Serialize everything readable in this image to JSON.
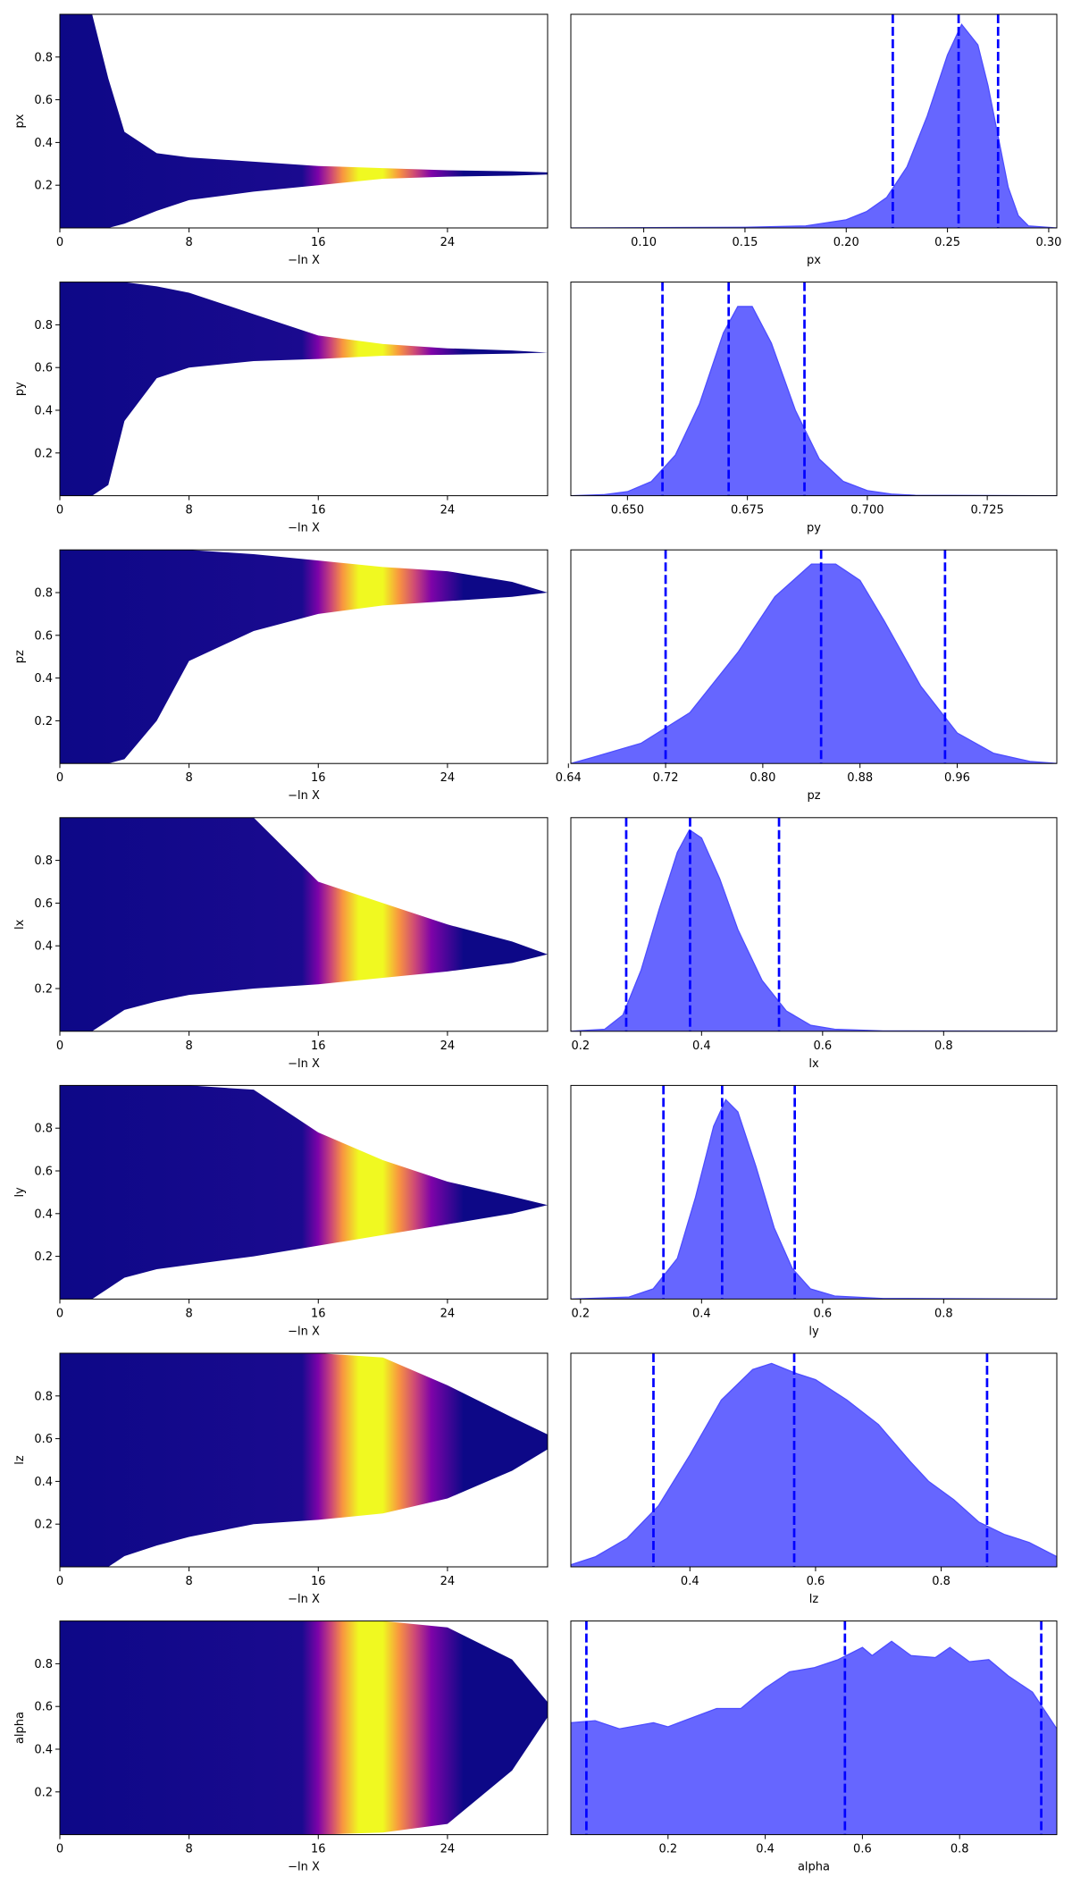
{
  "chart_data": [
    {
      "type": "band",
      "xlabel": "−ln X",
      "ylabel": "px",
      "xlim": [
        0,
        30.2
      ],
      "ylim": [
        0,
        1
      ],
      "xticks": [
        0,
        8,
        16,
        24
      ],
      "yticks": [
        0.2,
        0.4,
        0.6,
        0.8
      ],
      "x": [
        0,
        2,
        3,
        4,
        6,
        8,
        12,
        16,
        20,
        24,
        28,
        30.2
      ],
      "y_upper": [
        1,
        1,
        0.7,
        0.45,
        0.35,
        0.33,
        0.31,
        0.29,
        0.28,
        0.27,
        0.265,
        0.26
      ],
      "y_lower": [
        0,
        0,
        0,
        0.02,
        0.08,
        0.13,
        0.17,
        0.2,
        0.23,
        0.24,
        0.245,
        0.25
      ],
      "color_stops": [
        {
          "x": 0,
          "color": "#0d0887"
        },
        {
          "x": 15,
          "color": "#1a0a8f"
        },
        {
          "x": 16,
          "color": "#7e03a8"
        },
        {
          "x": 16.8,
          "color": "#cc4778"
        },
        {
          "x": 17.5,
          "color": "#f89540"
        },
        {
          "x": 18.5,
          "color": "#f0f921"
        },
        {
          "x": 20,
          "color": "#f0f921"
        },
        {
          "x": 21,
          "color": "#f89540"
        },
        {
          "x": 22,
          "color": "#cc4778"
        },
        {
          "x": 23,
          "color": "#7e03a8"
        },
        {
          "x": 25,
          "color": "#0d0887"
        },
        {
          "x": 30.2,
          "color": "#0d0887"
        }
      ]
    },
    {
      "type": "density",
      "xlabel": "px",
      "xlim": [
        0.064,
        0.304
      ],
      "ylim": [
        0,
        1.05
      ],
      "xticks": [
        {
          "value": 0.1,
          "label": "0.10"
        },
        {
          "value": 0.15,
          "label": "0.15"
        },
        {
          "value": 0.2,
          "label": "0.20"
        },
        {
          "value": 0.25,
          "label": "0.25"
        },
        {
          "value": 0.3,
          "label": "0.30"
        }
      ],
      "x": [
        0.064,
        0.15,
        0.18,
        0.2,
        0.21,
        0.22,
        0.23,
        0.24,
        0.25,
        0.257,
        0.265,
        0.27,
        0.275,
        0.28,
        0.285,
        0.29,
        0.304
      ],
      "values": [
        0,
        0.003,
        0.01,
        0.04,
        0.08,
        0.15,
        0.3,
        0.55,
        0.85,
        1.0,
        0.9,
        0.7,
        0.45,
        0.2,
        0.06,
        0.01,
        0
      ],
      "quantiles": [
        0.223,
        0.2555,
        0.275
      ],
      "color": "#6666ff",
      "quantile_color": "#0000ff"
    },
    {
      "type": "band",
      "xlabel": "−ln X",
      "ylabel": "py",
      "xlim": [
        0,
        30.2
      ],
      "ylim": [
        0,
        1
      ],
      "xticks": [
        0,
        8,
        16,
        24
      ],
      "yticks": [
        0.2,
        0.4,
        0.6,
        0.8
      ],
      "x": [
        0,
        2,
        3,
        4,
        6,
        8,
        12,
        16,
        20,
        24,
        28,
        30.2
      ],
      "y_upper": [
        1,
        1,
        1,
        1,
        0.98,
        0.95,
        0.85,
        0.75,
        0.71,
        0.69,
        0.68,
        0.67
      ],
      "y_lower": [
        0,
        0,
        0.05,
        0.35,
        0.55,
        0.6,
        0.63,
        0.64,
        0.655,
        0.66,
        0.665,
        0.67
      ],
      "color_stops": [
        {
          "x": 0,
          "color": "#0d0887"
        },
        {
          "x": 15,
          "color": "#1a0a8f"
        },
        {
          "x": 16,
          "color": "#7e03a8"
        },
        {
          "x": 16.8,
          "color": "#cc4778"
        },
        {
          "x": 17.5,
          "color": "#f89540"
        },
        {
          "x": 18.5,
          "color": "#f0f921"
        },
        {
          "x": 20,
          "color": "#f0f921"
        },
        {
          "x": 21,
          "color": "#f89540"
        },
        {
          "x": 22,
          "color": "#cc4778"
        },
        {
          "x": 23,
          "color": "#7e03a8"
        },
        {
          "x": 25,
          "color": "#0d0887"
        },
        {
          "x": 30.2,
          "color": "#0d0887"
        }
      ]
    },
    {
      "type": "density",
      "xlabel": "py",
      "xlim": [
        0.6382,
        0.7395
      ],
      "ylim": [
        0,
        1.05
      ],
      "xticks": [
        {
          "value": 0.65,
          "label": "0.650"
        },
        {
          "value": 0.675,
          "label": "0.675"
        },
        {
          "value": 0.7,
          "label": "0.700"
        },
        {
          "value": 0.725,
          "label": "0.725"
        }
      ],
      "x": [
        0.6382,
        0.645,
        0.65,
        0.655,
        0.66,
        0.665,
        0.67,
        0.673,
        0.676,
        0.68,
        0.685,
        0.69,
        0.695,
        0.7,
        0.705,
        0.71,
        0.7395
      ],
      "values": [
        0,
        0.005,
        0.02,
        0.07,
        0.2,
        0.45,
        0.8,
        0.93,
        0.93,
        0.75,
        0.42,
        0.18,
        0.07,
        0.025,
        0.008,
        0.002,
        0
      ],
      "quantiles": [
        0.6573,
        0.6711,
        0.6869
      ],
      "color": "#6666ff",
      "quantile_color": "#0000ff"
    },
    {
      "type": "band",
      "xlabel": "−ln X",
      "ylabel": "pz",
      "xlim": [
        0,
        30.2
      ],
      "ylim": [
        0,
        1
      ],
      "xticks": [
        0,
        8,
        16,
        24
      ],
      "yticks": [
        0.2,
        0.4,
        0.6,
        0.8
      ],
      "x": [
        0,
        2,
        3,
        4,
        6,
        8,
        12,
        16,
        20,
        24,
        28,
        30.2
      ],
      "y_upper": [
        1,
        1,
        1,
        1,
        1,
        1,
        0.98,
        0.95,
        0.92,
        0.9,
        0.85,
        0.8
      ],
      "y_lower": [
        0,
        0,
        0,
        0.02,
        0.2,
        0.48,
        0.62,
        0.7,
        0.74,
        0.76,
        0.78,
        0.8
      ],
      "color_stops": [
        {
          "x": 0,
          "color": "#0d0887"
        },
        {
          "x": 15,
          "color": "#1a0a8f"
        },
        {
          "x": 16,
          "color": "#7e03a8"
        },
        {
          "x": 16.8,
          "color": "#cc4778"
        },
        {
          "x": 17.5,
          "color": "#f89540"
        },
        {
          "x": 18.5,
          "color": "#f0f921"
        },
        {
          "x": 20,
          "color": "#f0f921"
        },
        {
          "x": 21,
          "color": "#f89540"
        },
        {
          "x": 22,
          "color": "#cc4778"
        },
        {
          "x": 23,
          "color": "#7e03a8"
        },
        {
          "x": 25,
          "color": "#0d0887"
        },
        {
          "x": 30.2,
          "color": "#0d0887"
        }
      ]
    },
    {
      "type": "density",
      "xlabel": "pz",
      "xlim": [
        0.642,
        1.042
      ],
      "ylim": [
        0,
        1.05
      ],
      "xticks": [
        0.64,
        0.72,
        {
          "value": 0.8,
          "label": "0.80"
        },
        0.88,
        0.96
      ],
      "x": [
        0.642,
        0.66,
        0.7,
        0.74,
        0.78,
        0.81,
        0.84,
        0.86,
        0.88,
        0.9,
        0.93,
        0.96,
        0.99,
        1.02,
        1.042
      ],
      "values": [
        0,
        0.03,
        0.1,
        0.25,
        0.55,
        0.82,
        0.98,
        0.98,
        0.9,
        0.7,
        0.38,
        0.15,
        0.05,
        0.01,
        0
      ],
      "quantiles": [
        0.72,
        0.848,
        0.95
      ],
      "color": "#6666ff",
      "quantile_color": "#0000ff"
    },
    {
      "type": "band",
      "xlabel": "−ln X",
      "ylabel": "lx",
      "xlim": [
        0,
        30.2
      ],
      "ylim": [
        0,
        1
      ],
      "xticks": [
        0,
        8,
        16,
        24
      ],
      "yticks": [
        0.2,
        0.4,
        0.6,
        0.8
      ],
      "x": [
        0,
        2,
        3,
        4,
        6,
        8,
        12,
        16,
        20,
        24,
        28,
        30.2
      ],
      "y_upper": [
        1,
        1,
        1,
        1,
        1,
        1,
        1,
        0.7,
        0.6,
        0.5,
        0.42,
        0.36
      ],
      "y_lower": [
        0,
        0,
        0.05,
        0.1,
        0.14,
        0.17,
        0.2,
        0.22,
        0.25,
        0.28,
        0.32,
        0.36
      ],
      "color_stops": [
        {
          "x": 0,
          "color": "#0d0887"
        },
        {
          "x": 15,
          "color": "#1a0a8f"
        },
        {
          "x": 16,
          "color": "#7e03a8"
        },
        {
          "x": 16.8,
          "color": "#cc4778"
        },
        {
          "x": 17.5,
          "color": "#f89540"
        },
        {
          "x": 18.5,
          "color": "#f0f921"
        },
        {
          "x": 20,
          "color": "#f0f921"
        },
        {
          "x": 21,
          "color": "#f89540"
        },
        {
          "x": 22,
          "color": "#cc4778"
        },
        {
          "x": 23,
          "color": "#7e03a8"
        },
        {
          "x": 25,
          "color": "#0d0887"
        },
        {
          "x": 30.2,
          "color": "#0d0887"
        }
      ]
    },
    {
      "type": "density",
      "xlabel": "lx",
      "xlim": [
        0.184,
        0.987
      ],
      "ylim": [
        0,
        1.05
      ],
      "xticks": [
        0.2,
        0.4,
        0.6,
        0.8
      ],
      "x": [
        0.184,
        0.24,
        0.27,
        0.3,
        0.33,
        0.36,
        0.38,
        0.4,
        0.43,
        0.46,
        0.5,
        0.54,
        0.58,
        0.62,
        0.7,
        0.987
      ],
      "values": [
        0,
        0.01,
        0.08,
        0.3,
        0.6,
        0.88,
        0.99,
        0.95,
        0.75,
        0.5,
        0.25,
        0.1,
        0.03,
        0.01,
        0.002,
        0
      ],
      "quantiles": [
        0.2755,
        0.381,
        0.528
      ],
      "color": "#6666ff",
      "quantile_color": "#0000ff"
    },
    {
      "type": "band",
      "xlabel": "−ln X",
      "ylabel": "ly",
      "xlim": [
        0,
        30.2
      ],
      "ylim": [
        0,
        1
      ],
      "xticks": [
        0,
        8,
        16,
        24
      ],
      "yticks": [
        0.2,
        0.4,
        0.6,
        0.8
      ],
      "x": [
        0,
        2,
        3,
        4,
        6,
        8,
        12,
        16,
        20,
        24,
        28,
        30.2
      ],
      "y_upper": [
        1,
        1,
        1,
        1,
        1,
        1,
        0.98,
        0.78,
        0.65,
        0.55,
        0.48,
        0.44
      ],
      "y_lower": [
        0,
        0,
        0.05,
        0.1,
        0.14,
        0.16,
        0.2,
        0.25,
        0.3,
        0.35,
        0.4,
        0.44
      ],
      "color_stops": [
        {
          "x": 0,
          "color": "#0d0887"
        },
        {
          "x": 15,
          "color": "#1a0a8f"
        },
        {
          "x": 16,
          "color": "#7e03a8"
        },
        {
          "x": 16.8,
          "color": "#cc4778"
        },
        {
          "x": 17.5,
          "color": "#f89540"
        },
        {
          "x": 18.5,
          "color": "#f0f921"
        },
        {
          "x": 20,
          "color": "#f0f921"
        },
        {
          "x": 21,
          "color": "#f89540"
        },
        {
          "x": 22,
          "color": "#cc4778"
        },
        {
          "x": 23,
          "color": "#7e03a8"
        },
        {
          "x": 25,
          "color": "#0d0887"
        },
        {
          "x": 30.2,
          "color": "#0d0887"
        }
      ]
    },
    {
      "type": "density",
      "xlabel": "ly",
      "xlim": [
        0.184,
        0.987
      ],
      "ylim": [
        0,
        1.05
      ],
      "xticks": [
        0.2,
        0.4,
        0.6,
        0.8
      ],
      "x": [
        0.184,
        0.28,
        0.32,
        0.36,
        0.39,
        0.42,
        0.44,
        0.46,
        0.49,
        0.52,
        0.55,
        0.58,
        0.62,
        0.7,
        0.987
      ],
      "values": [
        0,
        0.01,
        0.05,
        0.2,
        0.5,
        0.85,
        0.98,
        0.92,
        0.65,
        0.35,
        0.15,
        0.05,
        0.015,
        0.003,
        0
      ],
      "quantiles": [
        0.337,
        0.434,
        0.554
      ],
      "color": "#6666ff",
      "quantile_color": "#0000ff"
    },
    {
      "type": "band",
      "xlabel": "−ln X",
      "ylabel": "lz",
      "xlim": [
        0,
        30.2
      ],
      "ylim": [
        0,
        1
      ],
      "xticks": [
        0,
        8,
        16,
        24
      ],
      "yticks": [
        0.2,
        0.4,
        0.6,
        0.8
      ],
      "x": [
        0,
        2,
        3,
        4,
        6,
        8,
        12,
        16,
        20,
        24,
        28,
        30.2
      ],
      "y_upper": [
        1,
        1,
        1,
        1,
        1,
        1,
        1,
        1,
        0.98,
        0.85,
        0.7,
        0.62
      ],
      "y_lower": [
        0,
        0,
        0,
        0.05,
        0.1,
        0.14,
        0.2,
        0.22,
        0.25,
        0.32,
        0.45,
        0.55
      ],
      "color_stops": [
        {
          "x": 0,
          "color": "#0d0887"
        },
        {
          "x": 15,
          "color": "#1a0a8f"
        },
        {
          "x": 16,
          "color": "#7e03a8"
        },
        {
          "x": 16.8,
          "color": "#cc4778"
        },
        {
          "x": 17.5,
          "color": "#f89540"
        },
        {
          "x": 18.5,
          "color": "#f0f921"
        },
        {
          "x": 20,
          "color": "#f0f921"
        },
        {
          "x": 21,
          "color": "#f89540"
        },
        {
          "x": 22,
          "color": "#cc4778"
        },
        {
          "x": 23,
          "color": "#7e03a8"
        },
        {
          "x": 25,
          "color": "#0d0887"
        },
        {
          "x": 30.2,
          "color": "#0d0887"
        }
      ]
    },
    {
      "type": "density",
      "xlabel": "lz",
      "xlim": [
        0.2105,
        0.984
      ],
      "ylim": [
        0,
        1.05
      ],
      "xticks": [
        0.4,
        0.6,
        0.8
      ],
      "x": [
        0.2105,
        0.25,
        0.3,
        0.35,
        0.4,
        0.45,
        0.5,
        0.53,
        0.57,
        0.6,
        0.65,
        0.7,
        0.75,
        0.78,
        0.82,
        0.86,
        0.9,
        0.94,
        0.984
      ],
      "values": [
        0.01,
        0.05,
        0.14,
        0.3,
        0.55,
        0.82,
        0.97,
        1.0,
        0.95,
        0.92,
        0.82,
        0.7,
        0.52,
        0.42,
        0.33,
        0.22,
        0.16,
        0.12,
        0.05
      ],
      "quantiles": [
        0.342,
        0.566,
        0.873
      ],
      "color": "#6666ff",
      "quantile_color": "#0000ff"
    },
    {
      "type": "band",
      "xlabel": "−ln X",
      "ylabel": "alpha",
      "xlim": [
        0,
        30.2
      ],
      "ylim": [
        0,
        1
      ],
      "xticks": [
        0,
        8,
        16,
        24
      ],
      "yticks": [
        0.2,
        0.4,
        0.6,
        0.8
      ],
      "x": [
        0,
        2,
        3,
        4,
        6,
        8,
        12,
        16,
        20,
        24,
        28,
        30.2
      ],
      "y_upper": [
        1,
        1,
        1,
        1,
        1,
        1,
        1,
        1,
        1,
        0.97,
        0.82,
        0.62
      ],
      "y_lower": [
        0,
        0,
        0,
        0,
        0,
        0,
        0,
        0,
        0.01,
        0.05,
        0.3,
        0.55
      ],
      "color_stops": [
        {
          "x": 0,
          "color": "#0d0887"
        },
        {
          "x": 15,
          "color": "#1a0a8f"
        },
        {
          "x": 16,
          "color": "#7e03a8"
        },
        {
          "x": 16.8,
          "color": "#cc4778"
        },
        {
          "x": 17.5,
          "color": "#f89540"
        },
        {
          "x": 18.5,
          "color": "#f0f921"
        },
        {
          "x": 20,
          "color": "#f0f921"
        },
        {
          "x": 21,
          "color": "#f89540"
        },
        {
          "x": 22,
          "color": "#cc4778"
        },
        {
          "x": 23,
          "color": "#7e03a8"
        },
        {
          "x": 25,
          "color": "#0d0887"
        },
        {
          "x": 30.2,
          "color": "#0d0887"
        }
      ]
    },
    {
      "type": "density",
      "xlabel": "alpha",
      "xlim": [
        0,
        1
      ],
      "ylim": [
        0,
        1.05
      ],
      "xticks": [
        0.2,
        0.4,
        0.6,
        0.8
      ],
      "x": [
        0,
        0.05,
        0.1,
        0.17,
        0.2,
        0.3,
        0.35,
        0.4,
        0.45,
        0.5,
        0.55,
        0.6,
        0.62,
        0.66,
        0.7,
        0.75,
        0.78,
        0.82,
        0.86,
        0.9,
        0.95,
        1.0
      ],
      "values": [
        0.55,
        0.56,
        0.52,
        0.55,
        0.53,
        0.62,
        0.62,
        0.72,
        0.8,
        0.82,
        0.86,
        0.92,
        0.88,
        0.95,
        0.88,
        0.87,
        0.92,
        0.85,
        0.86,
        0.78,
        0.7,
        0.52
      ],
      "quantiles": [
        0.032,
        0.564,
        0.968
      ],
      "color": "#6666ff",
      "quantile_color": "#0000ff"
    }
  ]
}
